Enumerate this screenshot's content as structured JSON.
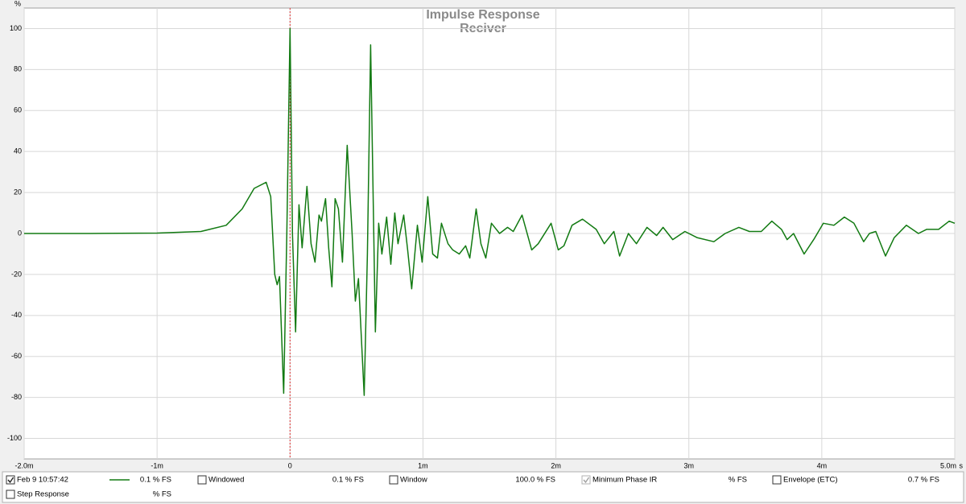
{
  "chart_data": {
    "type": "line",
    "title": "Impulse Response",
    "subtitle": "Reciver",
    "y_label": "%",
    "x_label": "s",
    "xlim": [
      -2,
      5
    ],
    "ylim": [
      -110,
      110
    ],
    "xticks": [
      {
        "value": -2,
        "label": "-2.0m"
      },
      {
        "value": -1,
        "label": "-1m"
      },
      0,
      {
        "value": 1,
        "label": "1m"
      },
      {
        "value": 2,
        "label": "2m"
      },
      {
        "value": 3,
        "label": "3m"
      },
      {
        "value": 4,
        "label": "4m"
      },
      {
        "value": 5,
        "label": "5.0m"
      }
    ],
    "yticks": [
      -100,
      -80,
      -60,
      -40,
      -20,
      0,
      20,
      40,
      60,
      80,
      100
    ],
    "grid": true,
    "marker_x": 0,
    "marker_color": "#e03030",
    "x": [
      -2,
      -1.5,
      -1,
      -0.67,
      -0.48,
      -0.36,
      -0.27,
      -0.18,
      -0.145,
      -0.115,
      -0.097,
      -0.079,
      -0.048,
      -0.024,
      0,
      0.018,
      0.042,
      0.067,
      0.091,
      0.127,
      0.158,
      0.188,
      0.218,
      0.236,
      0.267,
      0.291,
      0.315,
      0.339,
      0.364,
      0.394,
      0.43,
      0.467,
      0.491,
      0.515,
      0.558,
      0.582,
      0.606,
      0.63,
      0.642,
      0.667,
      0.691,
      0.727,
      0.758,
      0.788,
      0.812,
      0.855,
      0.885,
      0.915,
      0.958,
      0.994,
      1.036,
      1.073,
      1.109,
      1.139,
      1.188,
      1.224,
      1.273,
      1.321,
      1.352,
      1.4,
      1.436,
      1.473,
      1.515,
      1.576,
      1.636,
      1.679,
      1.745,
      1.818,
      1.867,
      1.964,
      2.018,
      2.06,
      2.121,
      2.2,
      2.303,
      2.364,
      2.436,
      2.479,
      2.545,
      2.606,
      2.685,
      2.758,
      2.806,
      2.879,
      2.97,
      3.061,
      3.188,
      3.273,
      3.376,
      3.455,
      3.545,
      3.624,
      3.697,
      3.739,
      3.788,
      3.867,
      3.939,
      4.012,
      4.091,
      4.17,
      4.242,
      4.315,
      4.358,
      4.406,
      4.479,
      4.545,
      4.636,
      4.727,
      4.788,
      4.879,
      4.958,
      5
    ],
    "series": [
      {
        "name": "Feb 9 10:57:42",
        "color": "#127a12",
        "values": [
          0,
          0,
          0.2,
          1,
          4,
          12,
          22,
          25,
          18,
          -20,
          -25,
          -21,
          -78,
          0,
          100,
          0,
          -48,
          14,
          -7,
          23,
          -5,
          -14,
          9,
          6,
          17,
          -7,
          -26,
          17,
          12,
          -14,
          43,
          0,
          -33,
          -22,
          -79,
          -10,
          92,
          0,
          -48,
          5,
          -10,
          8,
          -15,
          10,
          -5,
          9,
          -8,
          -27,
          4,
          -14,
          18,
          -10,
          -12,
          5,
          -5,
          -8,
          -10,
          -6,
          -12,
          12,
          -5,
          -12,
          5,
          0,
          3,
          1,
          9,
          -8,
          -5,
          5,
          -8,
          -6,
          4,
          7,
          2,
          -5,
          1,
          -11,
          0,
          -5,
          3,
          -1,
          3,
          -3,
          1,
          -2,
          -4,
          0,
          3,
          1,
          1,
          6,
          2,
          -3,
          0,
          -10,
          -3,
          5,
          4,
          8,
          5,
          -4,
          0,
          1,
          -11,
          -2,
          4,
          0,
          2,
          2,
          6,
          5
        ],
        "checked": true,
        "value_label": "0.1 % FS"
      }
    ]
  },
  "controls": [
    {
      "label": "Windowed",
      "checked": false,
      "value_label": "0.1 % FS",
      "color": "#2a9a2a"
    },
    {
      "label": "Window",
      "checked": false,
      "value_label": "100.0 % FS",
      "color": "#1a1aff"
    },
    {
      "label": "Minimum Phase IR",
      "checked": true,
      "value_label": "% FS",
      "color": "#a0a0a0"
    },
    {
      "label": "Envelope (ETC)",
      "checked": false,
      "value_label": "0.7 % FS",
      "color": "#127a12"
    },
    {
      "label": "Step Response",
      "checked": false,
      "value_label": "% FS",
      "color": "#127a12"
    }
  ]
}
